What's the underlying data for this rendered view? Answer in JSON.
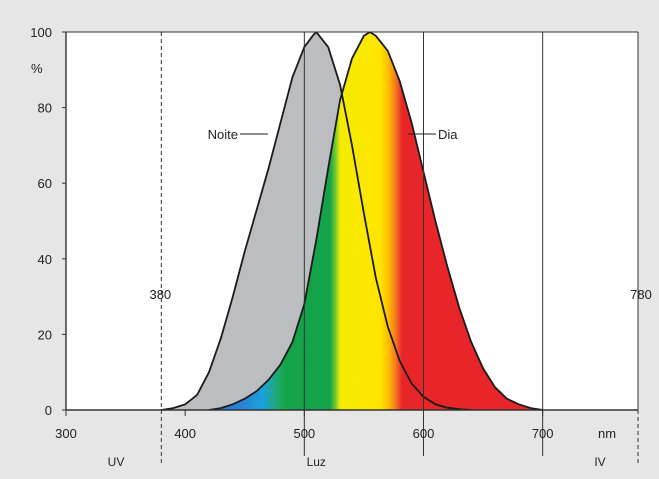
{
  "chart_data": {
    "type": "area",
    "xlim": [
      300,
      780
    ],
    "ylim": [
      0,
      100
    ],
    "x_ticks": [
      "300",
      "400",
      "500",
      "600",
      "700"
    ],
    "x_unit": "nm",
    "y_ticks": [
      "0",
      "20",
      "40",
      "60",
      "80",
      "100"
    ],
    "y_unit": "%",
    "grid": {
      "vertical_lines_at": [
        500,
        600,
        700
      ],
      "dashed_lines_at": [
        380,
        780
      ]
    },
    "dashed_line_labels": [
      "380",
      "780"
    ],
    "region_labels": [
      "UV",
      "Luz",
      "IV"
    ],
    "series": [
      {
        "name": "Noite",
        "color": "#bcbdc0",
        "x": [
          380,
          390,
          400,
          410,
          420,
          430,
          440,
          450,
          460,
          470,
          480,
          490,
          500,
          507,
          510,
          520,
          530,
          540,
          550,
          560,
          570,
          580,
          590,
          600,
          610,
          620,
          630,
          640
        ],
        "y": [
          0,
          0.5,
          1.5,
          4,
          10,
          19,
          30,
          42,
          53,
          64,
          76,
          88,
          96,
          99,
          100,
          96,
          86,
          70,
          52,
          35,
          22,
          13,
          7,
          3.5,
          1.5,
          0.6,
          0.2,
          0
        ]
      },
      {
        "name": "Dia",
        "color": "spectral",
        "x": [
          420,
          430,
          440,
          450,
          460,
          470,
          480,
          490,
          500,
          510,
          520,
          530,
          540,
          550,
          555,
          560,
          570,
          580,
          590,
          600,
          610,
          620,
          630,
          640,
          650,
          660,
          670,
          680,
          690,
          700
        ],
        "y": [
          0,
          0.5,
          1.5,
          3,
          5,
          8,
          12,
          18,
          28,
          45,
          64,
          82,
          93,
          99,
          100,
          99,
          95,
          87,
          76,
          63,
          50,
          38,
          27,
          18,
          11,
          6,
          3,
          1.5,
          0.5,
          0
        ]
      }
    ]
  }
}
